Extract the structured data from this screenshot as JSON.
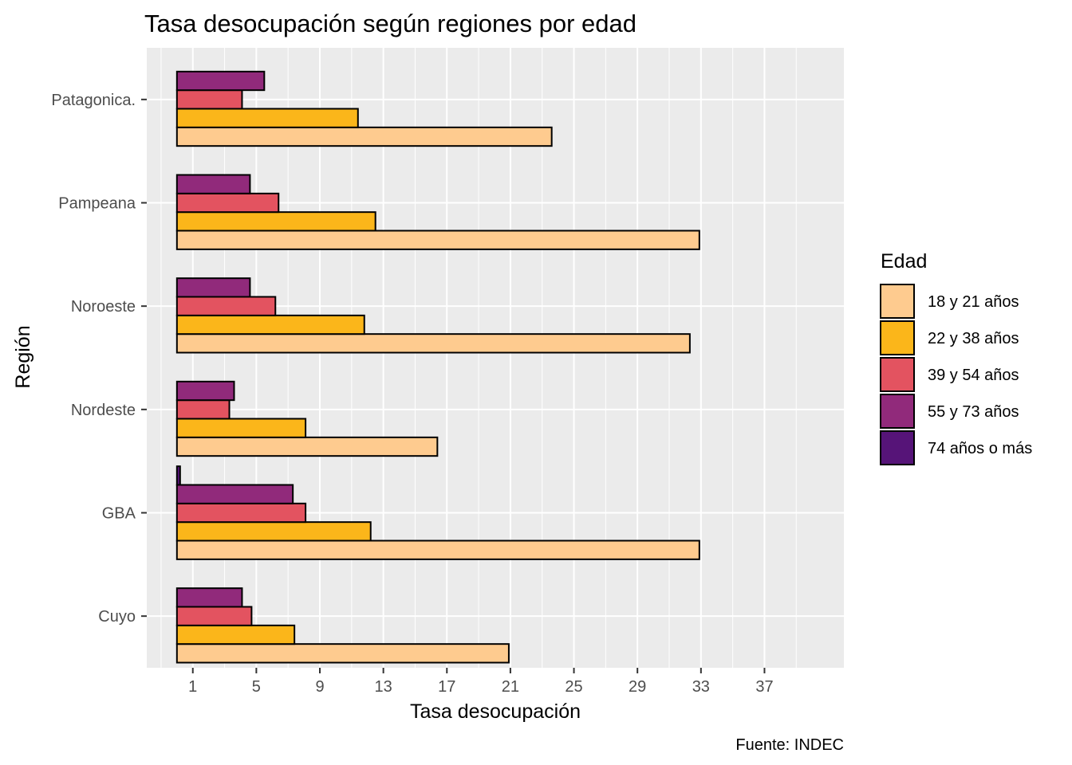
{
  "chart_data": {
    "type": "bar",
    "orientation": "horizontal",
    "title": "Tasa desocupación según regiones por edad",
    "xlabel": "Tasa desocupación",
    "ylabel": "Región",
    "caption": "Fuente: INDEC",
    "categories": [
      "Cuyo",
      "GBA",
      "Nordeste",
      "Noroeste",
      "Pampeana",
      "Patagonica."
    ],
    "xlim": [
      -1.9,
      42
    ],
    "x_ticks": [
      1,
      5,
      9,
      13,
      17,
      21,
      25,
      29,
      33,
      37
    ],
    "grid": true,
    "legend": {
      "title": "Edad",
      "position": "right"
    },
    "series": [
      {
        "name": "18 y 21 años",
        "color": "#FECB8F",
        "values": [
          20.9,
          32.9,
          16.4,
          32.3,
          32.9,
          23.6
        ]
      },
      {
        "name": "22 y 38 años",
        "color": "#FBB61A",
        "values": [
          7.4,
          12.2,
          8.1,
          11.8,
          12.5,
          11.4
        ]
      },
      {
        "name": "39 y 54 años",
        "color": "#E35360",
        "values": [
          4.7,
          8.1,
          3.3,
          6.2,
          6.4,
          4.1
        ]
      },
      {
        "name": "55 y 73 años",
        "color": "#912A7B",
        "values": [
          4.1,
          7.3,
          3.6,
          4.6,
          4.6,
          5.5
        ]
      },
      {
        "name": "74 años o más",
        "color": "#561478",
        "values": [
          0.0,
          0.2,
          0.0,
          0.0,
          0.0,
          0.0
        ]
      }
    ]
  }
}
